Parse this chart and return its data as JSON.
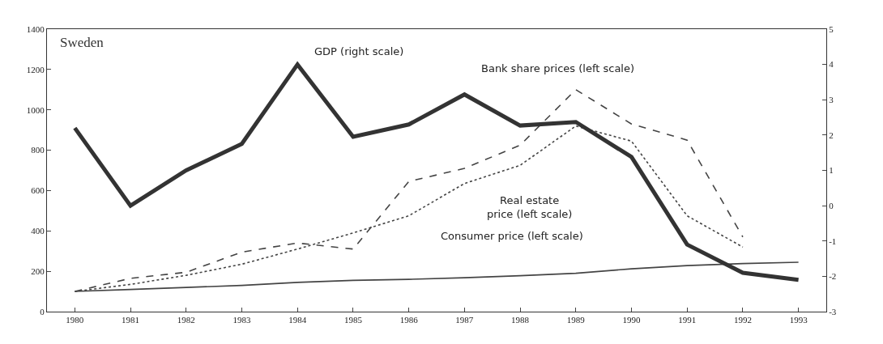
{
  "chart_data": {
    "type": "line",
    "title": "Sweden",
    "x": [
      1980,
      1981,
      1982,
      1983,
      1984,
      1985,
      1986,
      1987,
      1988,
      1989,
      1990,
      1991,
      1992,
      1993
    ],
    "series": [
      {
        "color": "#333333",
        "axis": "y2",
        "line_style": "solid",
        "values": [
          2.2,
          0.0,
          1.0,
          1.75,
          4.0,
          1.95,
          2.3,
          3.15,
          2.27,
          2.37,
          1.38,
          -1.1,
          -1.9,
          -2.1
        ]
      },
      {
        "color": "#444444",
        "line_style": "dashed",
        "values": [
          100,
          165,
          195,
          295,
          340,
          310,
          645,
          710,
          825,
          1100,
          930,
          850,
          370,
          null
        ]
      },
      {
        "color": "#444444",
        "line_style": "dotted",
        "values": [
          100,
          135,
          180,
          235,
          310,
          390,
          475,
          635,
          725,
          920,
          845,
          475,
          320,
          null
        ]
      },
      {
        "color": "#444444",
        "line_style": "solid",
        "values": [
          100,
          110,
          120,
          130,
          145,
          155,
          160,
          168,
          178,
          190,
          212,
          228,
          238,
          245
        ]
      }
    ],
    "annotations": [
      "GDP (right scale)",
      "Bank share prices (left scale)",
      "Real estate\nprice (left scale)",
      "Consumer price (left scale)"
    ],
    "xlim": [
      1979.5,
      1993.5
    ],
    "xticks": [
      1980,
      1981,
      1982,
      1983,
      1984,
      1985,
      1986,
      1987,
      1988,
      1989,
      1990,
      1991,
      1992,
      1993
    ],
    "ylim": [
      0,
      1400
    ],
    "yticks": [
      0,
      200,
      400,
      600,
      800,
      1000,
      1200,
      1400
    ],
    "y2lim": [
      -3,
      5
    ],
    "y2ticks": [
      -3,
      -2,
      -1,
      0,
      1,
      2,
      3,
      4,
      5
    ],
    "grid": false
  }
}
